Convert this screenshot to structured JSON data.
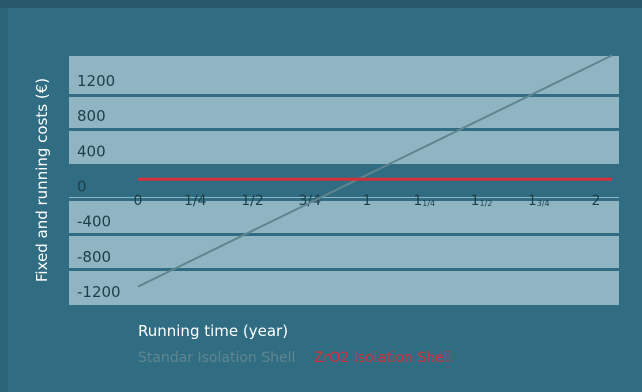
{
  "chart_data": {
    "type": "line",
    "title": "",
    "xlabel": "Running time (year)",
    "ylabel": "Fixed and running costs (€)",
    "x_ticks": [
      {
        "value": 0,
        "label": "0"
      },
      {
        "value": 0.25,
        "label": "1/4"
      },
      {
        "value": 0.5,
        "label": "1/2"
      },
      {
        "value": 0.75,
        "label": "3/4"
      },
      {
        "value": 1,
        "label": "1"
      },
      {
        "value": 1.25,
        "label": "1",
        "sub": "1/4"
      },
      {
        "value": 1.5,
        "label": "1",
        "sub": "1/2"
      },
      {
        "value": 1.75,
        "label": "1",
        "sub": "3/4"
      },
      {
        "value": 2,
        "label": "2"
      }
    ],
    "y_ticks": [
      1200,
      800,
      400,
      0,
      -400,
      -800,
      -1200
    ],
    "xlim": [
      0,
      2.07
    ],
    "ylim": [
      -1380,
      1380
    ],
    "grid": "alternating horizontal bands",
    "legend_position": "bottom-left",
    "series": [
      {
        "name": "Standar Isolation Shell",
        "color": "#5f8690",
        "x": [
          0,
          2.07
        ],
        "y": [
          -1150,
          1480
        ]
      },
      {
        "name": "ZrO2 Isolation Shell",
        "color": "#d5303a",
        "x": [
          0,
          2.07
        ],
        "y": [
          70,
          70
        ]
      }
    ]
  },
  "colors": {
    "background": "#306d82",
    "band": "#90b5c2",
    "tick_text": "#1c3f4a",
    "label_text": "#ffffff"
  }
}
